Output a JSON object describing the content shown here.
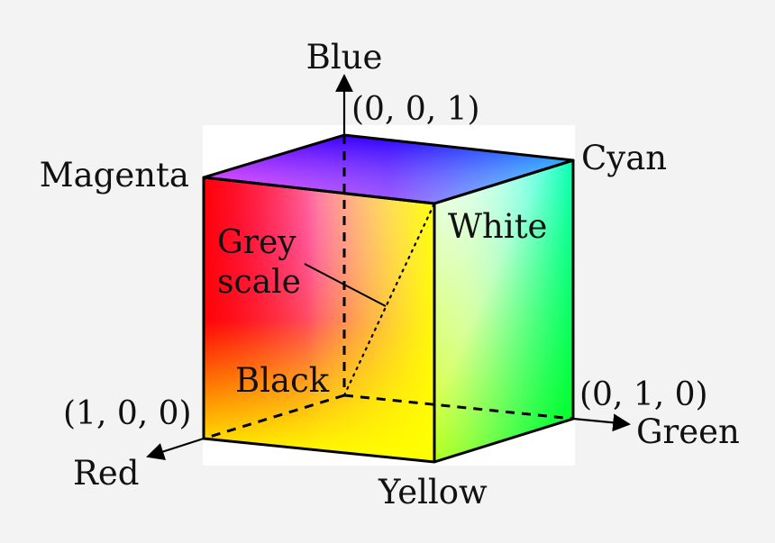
{
  "diagram": {
    "axes": {
      "blue_axis_label": "Blue",
      "red_axis_label": "Red",
      "green_axis_label": "Green"
    },
    "coordinates": {
      "blue": "(0, 0, 1)",
      "red": "(1, 0, 0)",
      "green": "(0, 1, 0)"
    },
    "corners": {
      "magenta": "Magenta",
      "cyan": "Cyan",
      "white": "White",
      "black": "Black",
      "yellow": "Yellow"
    },
    "grey_scale": [
      "Grey",
      "scale"
    ],
    "colors": {
      "red": "#ff0000",
      "green": "#00ff00",
      "blue": "#0000ff",
      "yellow": "#ffff00",
      "cyan": "#00ffff",
      "magenta": "#ff00ff",
      "white": "#ffffff",
      "black": "#000000",
      "edge": "#000000",
      "background": "#f3f3f3"
    }
  }
}
